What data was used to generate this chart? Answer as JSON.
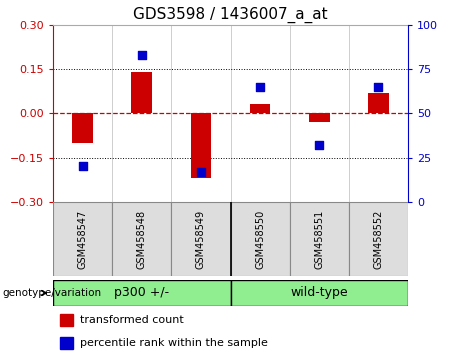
{
  "title": "GDS3598 / 1436007_a_at",
  "samples": [
    "GSM458547",
    "GSM458548",
    "GSM458549",
    "GSM458550",
    "GSM458551",
    "GSM458552"
  ],
  "red_values": [
    -0.1,
    0.14,
    -0.22,
    0.03,
    -0.03,
    0.07
  ],
  "blue_percentiles": [
    20,
    83,
    17,
    65,
    32,
    65
  ],
  "group_labels": [
    "p300 +/-",
    "wild-type"
  ],
  "group_colors": [
    "#90EE90",
    "#90EE90"
  ],
  "group_ranges": [
    [
      0,
      3
    ],
    [
      3,
      6
    ]
  ],
  "ylim": [
    -0.3,
    0.3
  ],
  "y2lim": [
    0,
    100
  ],
  "yticks": [
    -0.3,
    -0.15,
    0,
    0.15,
    0.3
  ],
  "y2ticks": [
    0,
    25,
    50,
    75,
    100
  ],
  "bar_width": 0.35,
  "bar_color": "#CC0000",
  "dot_color": "#0000CC",
  "dot_size": 30,
  "zero_line_color": "#CC0000",
  "grid_color": "#000000",
  "title_fontsize": 11,
  "tick_fontsize": 8,
  "label_fontsize": 8,
  "legend_fontsize": 8,
  "group_label_fontsize": 9,
  "sample_label_fontsize": 7,
  "genotype_label": "genotype/variation",
  "legend_items": [
    "transformed count",
    "percentile rank within the sample"
  ],
  "label_bg": "#dddddd",
  "label_border": "#888888",
  "zero_line_style": "--",
  "dot_line_style": ":"
}
